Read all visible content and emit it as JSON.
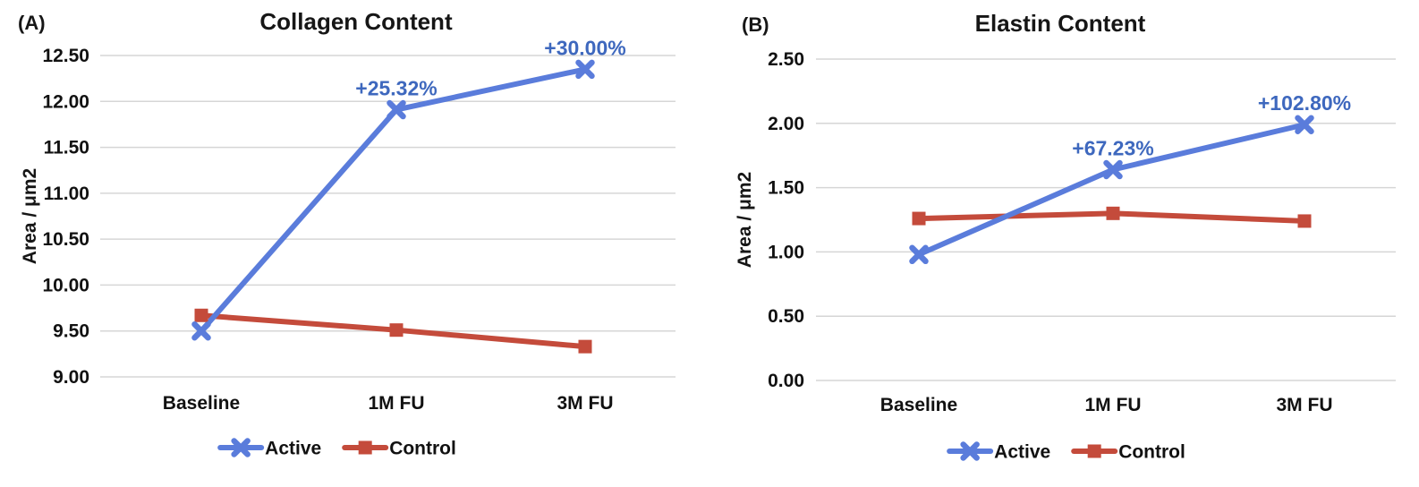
{
  "figure": {
    "background": "#ffffff",
    "grid_color": "#D6D6D6",
    "text_color": "#161616"
  },
  "chart_data": [
    {
      "type": "line",
      "panel_label": "(A)",
      "title": "Collagen Content",
      "xlabel": "",
      "ylabel": "Area / μm2",
      "categories": [
        "Baseline",
        "1M FU",
        "3M FU"
      ],
      "series": [
        {
          "name": "Control",
          "marker": "square",
          "color": "#C44B3B",
          "values": [
            9.67,
            9.51,
            9.33
          ],
          "annotations": [
            null,
            null,
            null
          ]
        },
        {
          "name": "Active",
          "marker": "x",
          "color": "#5A7CDB",
          "annotation_color": "#3E68BE",
          "values": [
            9.5,
            11.91,
            12.35
          ],
          "annotations": [
            null,
            "+25.32%",
            "+30.00%"
          ]
        }
      ],
      "ylim": [
        9.0,
        12.5
      ],
      "ytick_labels": [
        "12.50",
        "12.00",
        "11.50",
        "11.00",
        "10.50",
        "10.00",
        "9.50",
        "9.00"
      ],
      "grid": true,
      "legend_position": "bottom",
      "legend_order": [
        "Active",
        "Control"
      ]
    },
    {
      "type": "line",
      "panel_label": "(B)",
      "title": "Elastin Content",
      "xlabel": "",
      "ylabel": "Area / μm2",
      "categories": [
        "Baseline",
        "1M FU",
        "3M FU"
      ],
      "series": [
        {
          "name": "Control",
          "marker": "square",
          "color": "#C44B3B",
          "values": [
            1.26,
            1.3,
            1.24
          ],
          "annotations": [
            null,
            null,
            null
          ]
        },
        {
          "name": "Active",
          "marker": "x",
          "color": "#5A7CDB",
          "annotation_color": "#3E68BE",
          "values": [
            0.98,
            1.64,
            1.99
          ],
          "annotations": [
            null,
            "+67.23%",
            "+102.80%"
          ]
        }
      ],
      "ylim": [
        0.0,
        2.5
      ],
      "ytick_labels": [
        "2.50",
        "2.00",
        "1.50",
        "1.00",
        "0.50",
        "0.00"
      ],
      "grid": true,
      "legend_position": "bottom",
      "legend_order": [
        "Active",
        "Control"
      ]
    }
  ]
}
